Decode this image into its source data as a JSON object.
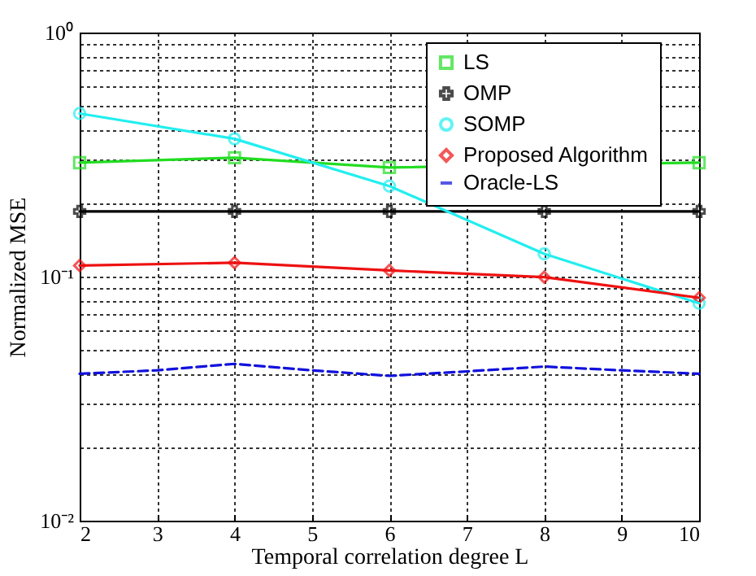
{
  "chart_data": {
    "type": "line",
    "xlabel": "Temporal correlation degree L",
    "ylabel": "Normalized MSE",
    "xlim": [
      2,
      10
    ],
    "xticks": [
      2,
      3,
      4,
      5,
      6,
      7,
      8,
      9,
      10
    ],
    "ylim": [
      0.01,
      1
    ],
    "yticks": [
      {
        "value": 0.01,
        "label": "10⁻²"
      },
      {
        "value": 0.02,
        "label": null
      },
      {
        "value": 0.03,
        "label": null
      },
      {
        "value": 0.04,
        "label": null
      },
      {
        "value": 0.05,
        "label": null
      },
      {
        "value": 0.06,
        "label": null
      },
      {
        "value": 0.07,
        "label": null
      },
      {
        "value": 0.08,
        "label": null
      },
      {
        "value": 0.09,
        "label": null
      },
      {
        "value": 0.1,
        "label": "10⁻¹"
      },
      {
        "value": 0.2,
        "label": null
      },
      {
        "value": 0.3,
        "label": null
      },
      {
        "value": 0.4,
        "label": null
      },
      {
        "value": 0.5,
        "label": null
      },
      {
        "value": 0.6,
        "label": null
      },
      {
        "value": 0.7,
        "label": null
      },
      {
        "value": 0.8,
        "label": null
      },
      {
        "value": 0.9,
        "label": null
      },
      {
        "value": 1,
        "label": "10⁰"
      }
    ],
    "log": true,
    "grid": true,
    "legend": "top right",
    "series": [
      {
        "name": "LS",
        "color": "#22dd22",
        "marker": "square",
        "x": [
          2,
          4,
          6,
          8,
          10
        ],
        "values": [
          0.293,
          0.307,
          0.28,
          null,
          0.293
        ]
      },
      {
        "name": "OMP",
        "color": "#000000",
        "marker": "cross",
        "x": [
          2,
          4,
          6,
          8,
          10
        ],
        "values": [
          0.185,
          0.185,
          0.185,
          0.185,
          0.185
        ]
      },
      {
        "name": "SOMP",
        "color": "#22eef0",
        "marker": "circle",
        "x": [
          2,
          4,
          6,
          8,
          10
        ],
        "values": [
          0.466,
          0.367,
          0.235,
          0.124,
          0.0778
        ]
      },
      {
        "name": "Proposed Algorithm",
        "color": "#ee1111",
        "marker": "diamond",
        "x": [
          2,
          4,
          6,
          8,
          10
        ],
        "values": [
          0.111,
          0.114,
          0.106,
          0.0995,
          0.0819
        ]
      },
      {
        "name": "Oracle-LS",
        "color": "#1111dd",
        "marker": "none",
        "line_style": "dashed",
        "x": [
          2,
          3,
          4,
          5,
          6,
          7,
          8,
          9,
          10
        ],
        "values": [
          0.04,
          0.0413,
          0.0439,
          0.0413,
          0.0392,
          0.0409,
          0.0428,
          0.0413,
          0.04
        ]
      }
    ]
  }
}
